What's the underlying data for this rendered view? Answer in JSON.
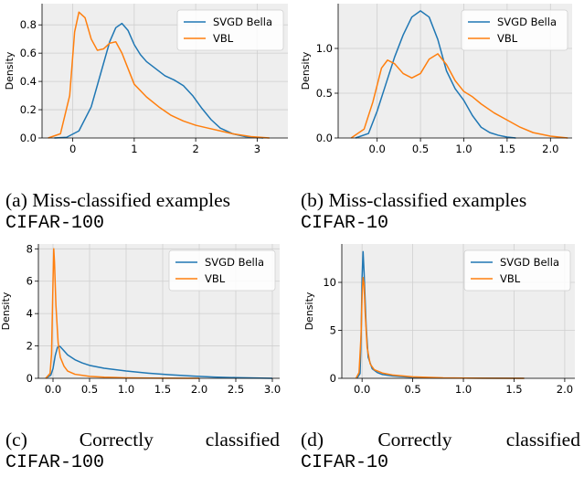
{
  "style": {
    "plot_bg": "#eeeeee",
    "grid_color": "#cfcfcf",
    "series_colors": [
      "#1f77b4",
      "#ff7f0e"
    ]
  },
  "captions": [
    {
      "label": "(a)",
      "text": "Miss-classified examples",
      "dataset": "CIFAR-100"
    },
    {
      "label": "(b)",
      "text": "Miss-classified examples",
      "dataset": "CIFAR-10"
    },
    {
      "label": "(c)",
      "words": [
        "Correctly",
        "classified"
      ],
      "dataset": "CIFAR-100"
    },
    {
      "label": "(d)",
      "words": [
        "Correctly",
        "classified"
      ],
      "dataset": "CIFAR-10"
    }
  ],
  "chart_data": [
    {
      "type": "line",
      "title": "",
      "xlabel": "",
      "ylabel": "Density",
      "xlim": [
        -0.5,
        3.5
      ],
      "ylim": [
        0,
        0.95
      ],
      "xticks": [
        0,
        1,
        2,
        3
      ],
      "xtick_labels": [
        "0",
        "1",
        "2",
        "3"
      ],
      "yticks": [
        0,
        0.2,
        0.4,
        0.6,
        0.8
      ],
      "ytick_labels": [
        "0.0",
        "0.2",
        "0.4",
        "0.6",
        "0.8"
      ],
      "grid": true,
      "legend": "top-right",
      "series": [
        {
          "name": "SVGD Bella",
          "x": [
            -0.3,
            -0.1,
            0.1,
            0.3,
            0.45,
            0.6,
            0.7,
            0.8,
            0.9,
            1.0,
            1.1,
            1.2,
            1.35,
            1.5,
            1.65,
            1.8,
            1.95,
            2.1,
            2.25,
            2.4,
            2.6,
            2.8,
            3.1
          ],
          "y": [
            0.0,
            0.005,
            0.05,
            0.22,
            0.45,
            0.68,
            0.78,
            0.81,
            0.76,
            0.66,
            0.59,
            0.54,
            0.49,
            0.44,
            0.41,
            0.37,
            0.3,
            0.21,
            0.13,
            0.07,
            0.03,
            0.01,
            0.0
          ]
        },
        {
          "name": "VBL",
          "x": [
            -0.4,
            -0.2,
            -0.05,
            0.03,
            0.1,
            0.2,
            0.3,
            0.4,
            0.5,
            0.6,
            0.7,
            0.8,
            0.9,
            1.0,
            1.2,
            1.4,
            1.6,
            1.8,
            2.0,
            2.2,
            2.4,
            2.6,
            2.9,
            3.2
          ],
          "y": [
            0.0,
            0.03,
            0.3,
            0.75,
            0.89,
            0.85,
            0.7,
            0.62,
            0.63,
            0.67,
            0.68,
            0.6,
            0.49,
            0.38,
            0.29,
            0.22,
            0.16,
            0.12,
            0.09,
            0.07,
            0.05,
            0.03,
            0.01,
            0.0
          ]
        }
      ]
    },
    {
      "type": "line",
      "title": "",
      "xlabel": "",
      "ylabel": "Density",
      "xlim": [
        -0.45,
        2.25
      ],
      "ylim": [
        0,
        1.5
      ],
      "xticks": [
        0,
        0.5,
        1.0,
        1.5,
        2.0
      ],
      "xtick_labels": [
        "0.0",
        "0.5",
        "1.0",
        "1.5",
        "2.0"
      ],
      "yticks": [
        0,
        0.5,
        1.0
      ],
      "ytick_labels": [
        "0.0",
        "0.5",
        "1.0"
      ],
      "grid": true,
      "legend": "top-right",
      "series": [
        {
          "name": "SVGD Bella",
          "x": [
            -0.25,
            -0.1,
            0.0,
            0.1,
            0.2,
            0.3,
            0.4,
            0.5,
            0.6,
            0.7,
            0.8,
            0.9,
            1.0,
            1.1,
            1.2,
            1.3,
            1.4,
            1.5,
            1.6
          ],
          "y": [
            0.0,
            0.05,
            0.3,
            0.6,
            0.9,
            1.15,
            1.35,
            1.42,
            1.35,
            1.1,
            0.75,
            0.55,
            0.42,
            0.25,
            0.12,
            0.06,
            0.03,
            0.01,
            0.0
          ]
        },
        {
          "name": "VBL",
          "x": [
            -0.3,
            -0.15,
            -0.05,
            0.05,
            0.12,
            0.2,
            0.3,
            0.4,
            0.5,
            0.6,
            0.7,
            0.8,
            0.9,
            1.0,
            1.1,
            1.2,
            1.35,
            1.5,
            1.65,
            1.8,
            2.0,
            2.2
          ],
          "y": [
            0.0,
            0.1,
            0.4,
            0.78,
            0.87,
            0.83,
            0.72,
            0.67,
            0.72,
            0.88,
            0.94,
            0.82,
            0.64,
            0.52,
            0.46,
            0.38,
            0.28,
            0.2,
            0.12,
            0.06,
            0.02,
            0.0
          ]
        }
      ]
    },
    {
      "type": "line",
      "title": "",
      "xlabel": "",
      "ylabel": "Density",
      "xlim": [
        -0.2,
        3.1
      ],
      "ylim": [
        0,
        8.3
      ],
      "xticks": [
        0,
        0.5,
        1.0,
        1.5,
        2.0,
        2.5,
        3.0
      ],
      "xtick_labels": [
        "0.0",
        "0.5",
        "1.0",
        "1.5",
        "2.0",
        "2.5",
        "3.0"
      ],
      "yticks": [
        0,
        2,
        4,
        6,
        8
      ],
      "ytick_labels": [
        "0",
        "2",
        "4",
        "6",
        "8"
      ],
      "grid": true,
      "legend": "top-right",
      "series": [
        {
          "name": "SVGD Bella",
          "x": [
            -0.1,
            -0.03,
            0.0,
            0.03,
            0.06,
            0.08,
            0.1,
            0.15,
            0.2,
            0.3,
            0.4,
            0.5,
            0.7,
            1.0,
            1.3,
            1.6,
            1.9,
            2.2,
            2.5,
            3.0
          ],
          "y": [
            0.0,
            0.2,
            0.6,
            1.4,
            1.9,
            2.0,
            1.95,
            1.7,
            1.45,
            1.15,
            0.95,
            0.8,
            0.62,
            0.45,
            0.32,
            0.22,
            0.14,
            0.08,
            0.04,
            0.0
          ]
        },
        {
          "name": "VBL",
          "x": [
            -0.1,
            -0.04,
            -0.02,
            0.0,
            0.01,
            0.02,
            0.04,
            0.07,
            0.1,
            0.15,
            0.2,
            0.3,
            0.5,
            0.7,
            1.0,
            1.5,
            2.0
          ],
          "y": [
            0.0,
            0.3,
            1.5,
            6.0,
            8.0,
            7.2,
            4.5,
            2.2,
            1.3,
            0.75,
            0.45,
            0.25,
            0.12,
            0.07,
            0.03,
            0.01,
            0.0
          ]
        }
      ]
    },
    {
      "type": "line",
      "title": "",
      "xlabel": "",
      "ylabel": "Density",
      "xlim": [
        -0.2,
        2.1
      ],
      "ylim": [
        0,
        14
      ],
      "xticks": [
        0,
        0.5,
        1.0,
        1.5,
        2.0
      ],
      "xtick_labels": [
        "0.0",
        "0.5",
        "1.0",
        "1.5",
        "2.0"
      ],
      "yticks": [
        0,
        5,
        10
      ],
      "ytick_labels": [
        "0",
        "5",
        "10"
      ],
      "grid": true,
      "legend": "top-right",
      "series": [
        {
          "name": "SVGD Bella",
          "x": [
            -0.05,
            -0.02,
            -0.01,
            0.0,
            0.01,
            0.02,
            0.04,
            0.06,
            0.1,
            0.15,
            0.2,
            0.3,
            0.5,
            0.8,
            1.2,
            1.6
          ],
          "y": [
            0.0,
            0.5,
            4.0,
            10.5,
            13.2,
            11.0,
            5.5,
            2.2,
            1.0,
            0.6,
            0.4,
            0.25,
            0.1,
            0.03,
            0.01,
            0.0
          ]
        },
        {
          "name": "VBL",
          "x": [
            -0.06,
            -0.03,
            -0.01,
            0.0,
            0.01,
            0.02,
            0.03,
            0.05,
            0.08,
            0.12,
            0.2,
            0.3,
            0.5,
            0.8,
            1.2,
            1.6
          ],
          "y": [
            0.0,
            0.6,
            4.5,
            8.5,
            10.5,
            9.8,
            7.0,
            3.2,
            1.5,
            0.9,
            0.55,
            0.35,
            0.15,
            0.05,
            0.01,
            0.0
          ]
        }
      ]
    }
  ]
}
